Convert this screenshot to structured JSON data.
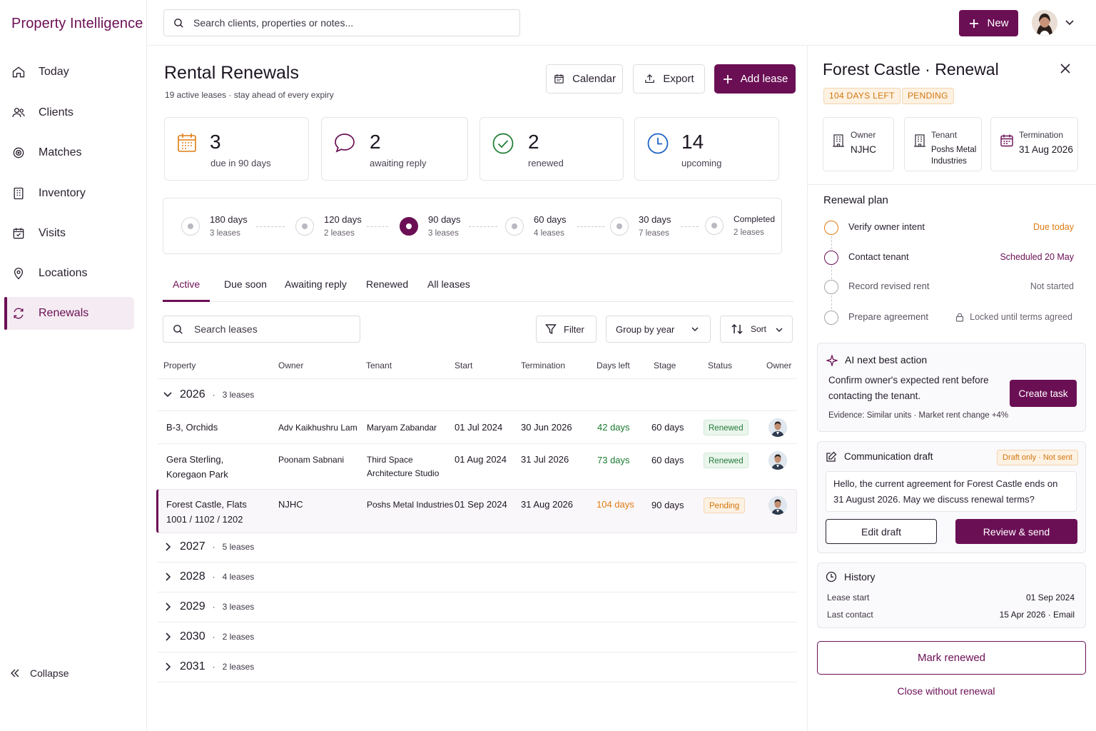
{
  "app": {
    "brand": "Property Intelligence"
  },
  "sidebar": {
    "items": [
      {
        "label": "Today",
        "icon": "home-icon"
      },
      {
        "label": "Clients",
        "icon": "users-icon"
      },
      {
        "label": "Matches",
        "icon": "target-icon"
      },
      {
        "label": "Inventory",
        "icon": "building-icon"
      },
      {
        "label": "Visits",
        "icon": "calendar-check-icon"
      },
      {
        "label": "Locations",
        "icon": "map-pin-icon"
      },
      {
        "label": "Renewals",
        "icon": "refresh-icon",
        "active": true
      }
    ],
    "collapse_label": "Collapse"
  },
  "topbar": {
    "search_placeholder": "Search clients, properties or notes...",
    "new_label": "New"
  },
  "header": {
    "title": "Rental Renewals",
    "subtitle": "19 active leases · stay ahead of every expiry",
    "calendar_label": "Calendar",
    "export_label": "Export",
    "add_lease_label": "Add lease"
  },
  "stats": [
    {
      "value": "3",
      "label": "due in 90 days",
      "icon": "calendar-icon",
      "color": "#e07b12"
    },
    {
      "value": "2",
      "label": "awaiting reply",
      "icon": "chat-bubble-icon",
      "color": "#6b0f55"
    },
    {
      "value": "2",
      "label": "renewed",
      "icon": "check-circle-icon",
      "color": "#1d7a31"
    },
    {
      "value": "14",
      "label": "upcoming",
      "icon": "clock-icon",
      "color": "#1e63c4"
    }
  ],
  "pipeline": [
    {
      "label": "180 days",
      "count": "3 leases"
    },
    {
      "label": "120 days",
      "count": "2 leases"
    },
    {
      "label": "90 days",
      "count": "3 leases",
      "current": true
    },
    {
      "label": "60 days",
      "count": "4 leases"
    },
    {
      "label": "30 days",
      "count": "7 leases"
    },
    {
      "label": "Completed",
      "count": "2 leases"
    }
  ],
  "tabs": [
    "Active",
    "Due soon",
    "Awaiting reply",
    "Renewed",
    "All leases"
  ],
  "toolbar": {
    "search_placeholder": "Search leases",
    "filter_label": "Filter",
    "group_label": "Group by year",
    "sort_label": "Sort"
  },
  "table": {
    "columns": [
      "Property",
      "Owner",
      "Tenant",
      "Start",
      "Termination",
      "Days left",
      "Stage",
      "Status",
      "Owner"
    ],
    "groups": [
      {
        "year": "2026",
        "count": "3 leases",
        "expanded": true
      },
      {
        "year": "2027",
        "count": "5 leases"
      },
      {
        "year": "2028",
        "count": "4 leases"
      },
      {
        "year": "2029",
        "count": "3 leases"
      },
      {
        "year": "2030",
        "count": "2 leases"
      },
      {
        "year": "2031",
        "count": "2 leases"
      }
    ],
    "rows": [
      {
        "property": "B-3, Orchids",
        "property2": "",
        "owner": "Adv Kaikhushru Lam",
        "tenant": "Maryam Zabandar",
        "tenant2": "",
        "start": "01 Jul 2024",
        "termination": "30 Jun 2026",
        "days_left": "42 days",
        "stage": "60 days",
        "status": "Renewed"
      },
      {
        "property": "Gera Sterling,",
        "property2": "Koregaon Park",
        "owner": "Poonam Sabnani",
        "tenant": "Third Space",
        "tenant2": "Architecture Studio",
        "start": "01 Aug 2024",
        "termination": "31 Jul 2026",
        "days_left": "73 days",
        "stage": "60 days",
        "status": "Renewed"
      },
      {
        "property": "Forest Castle, Flats",
        "property2": "1001 / 1102 / 1202",
        "owner": "NJHC",
        "tenant": "Poshs Metal Industries",
        "tenant2": "",
        "start": "01 Sep 2024",
        "termination": "31 Aug 2026",
        "days_left": "104 days",
        "stage": "90 days",
        "status": "Pending"
      }
    ]
  },
  "detail": {
    "title": "Forest Castle · Renewal",
    "tags": [
      "104 DAYS LEFT",
      "PENDING"
    ],
    "owner_label": "Owner",
    "owner_value": "NJHC",
    "tenant_label": "Tenant",
    "tenant_value1": "Poshs Metal",
    "tenant_value2": "Industries",
    "termination_label": "Termination",
    "termination_value": "31 Aug 2026",
    "plan_title": "Renewal plan",
    "plan_steps": [
      {
        "label": "Verify owner intent",
        "status": "Due today",
        "status_color": "#e07b12",
        "circle": "#e07b12"
      },
      {
        "label": "Contact tenant",
        "status": "Scheduled 20 May",
        "status_color": "#6b0f55",
        "circle": "#6b0f55"
      },
      {
        "label": "Record revised rent",
        "status": "Not started",
        "status_color": "#6b6370",
        "circle": "#a6a6ae"
      },
      {
        "label": "Prepare agreement",
        "status": "Locked until terms agreed",
        "status_color": "#6b6370",
        "circle": "#a6a6ae"
      }
    ],
    "ai": {
      "title": "AI next best action",
      "text1": "Confirm owner's expected rent before",
      "text2": "contacting the tenant.",
      "evidence": "Evidence: Similar units · Market rent change +4%",
      "button": "Create task"
    },
    "comm": {
      "title": "Communication draft",
      "badge": "Draft only · Not sent",
      "text1": "Hello, the current agreement for Forest Castle ends on",
      "text2": "31 August 2026. May we discuss renewal terms?",
      "edit_label": "Edit draft",
      "send_label": "Review & send"
    },
    "history": {
      "title": "History",
      "rows": [
        {
          "k": "Lease start",
          "v": "01 Sep 2024"
        },
        {
          "k": "Last contact",
          "v": "15 Apr 2026 · Email"
        }
      ]
    },
    "mark_renewed": "Mark renewed",
    "close_without": "Close without renewal"
  },
  "colors": {
    "brand": "#6b0f55",
    "warning": "#e07b12",
    "success": "#1d7a31",
    "info": "#1e63c4"
  }
}
